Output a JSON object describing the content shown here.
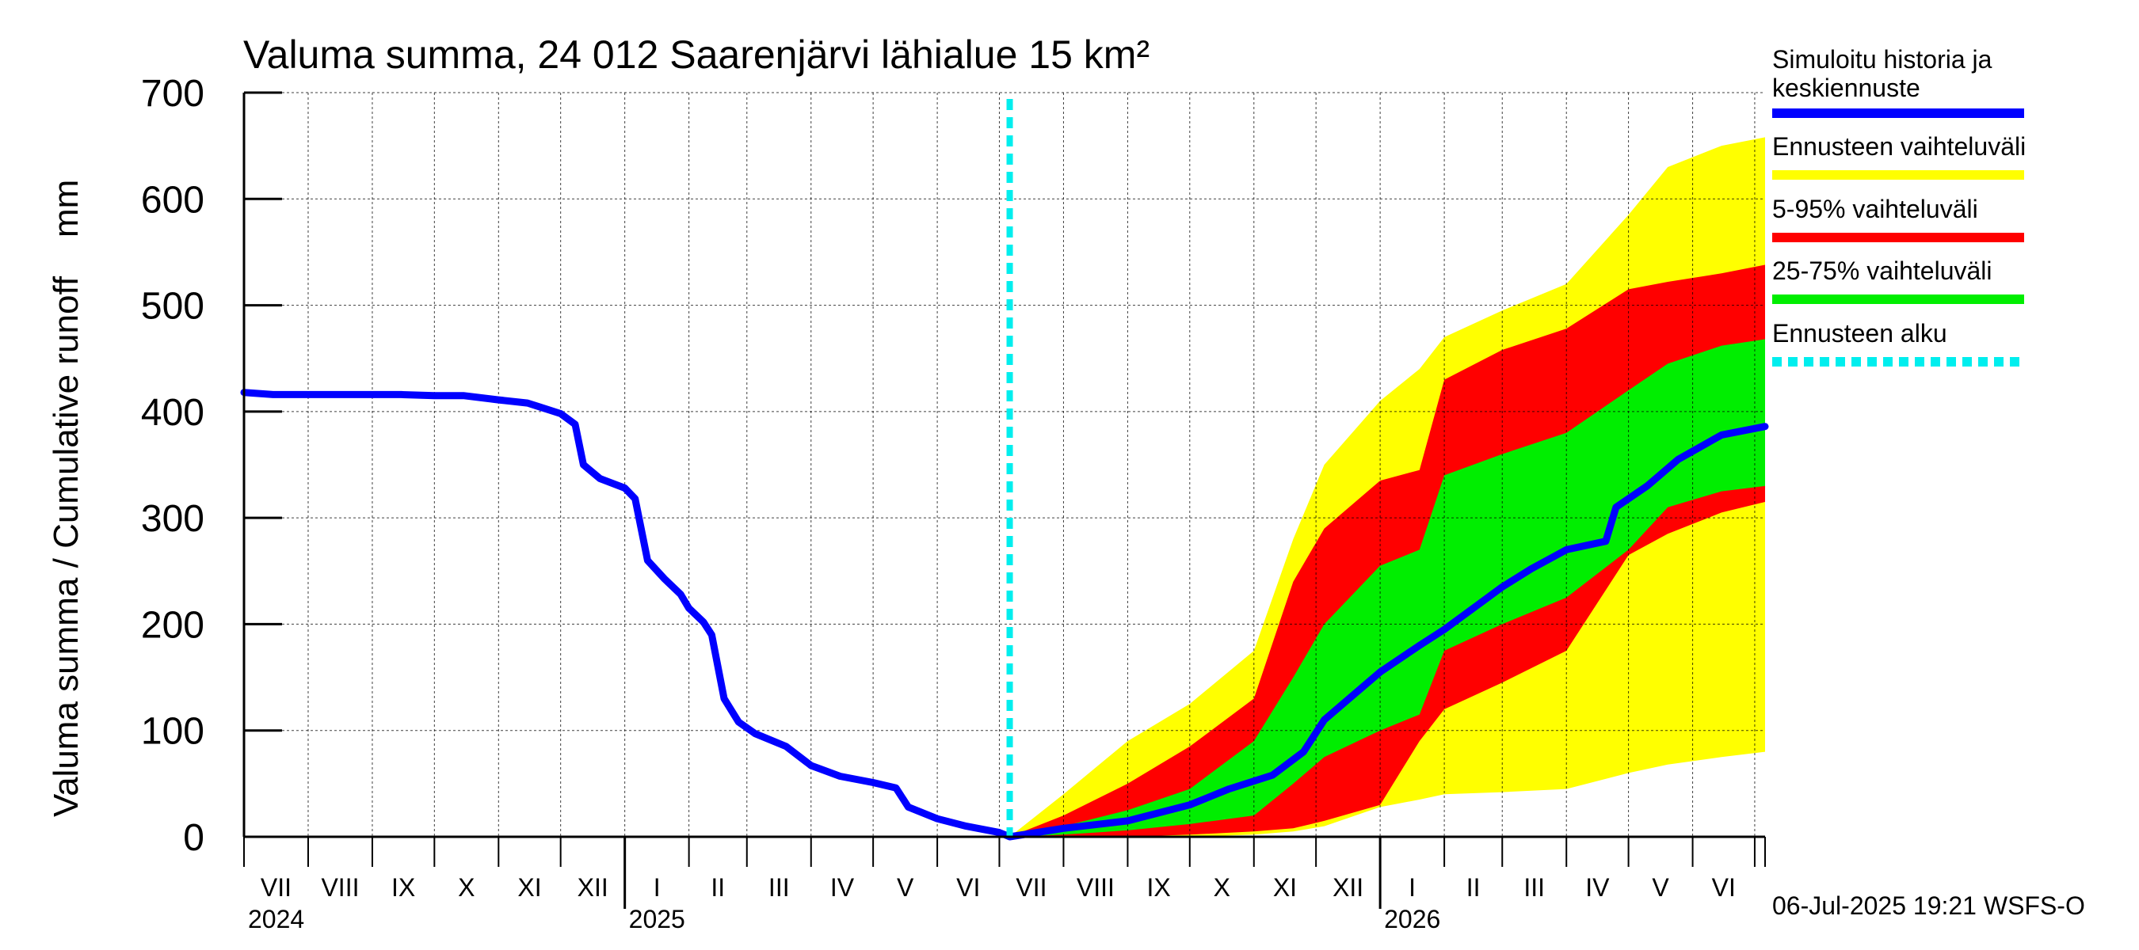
{
  "chart_data": {
    "type": "area",
    "title": "Valuma summa, 24 012 Saarenjärvi lähialue 15 km²",
    "ylabel": "Valuma summa / Cumulative runoff    mm",
    "ylim": [
      0,
      700
    ],
    "yticks": [
      "0",
      "100",
      "200",
      "300",
      "400",
      "500",
      "600",
      "700"
    ],
    "ytick_values": [
      0,
      100,
      200,
      300,
      400,
      500,
      600,
      700
    ],
    "x_start": "2024-07-01",
    "x_end": "2026-07-06",
    "month_labels": [
      "VII",
      "VIII",
      "IX",
      "X",
      "XI",
      "XII",
      "I",
      "II",
      "III",
      "IV",
      "V",
      "VI",
      "VII",
      "VIII",
      "IX",
      "X",
      "XI",
      "XII",
      "I",
      "II",
      "III",
      "IV",
      "V",
      "VI"
    ],
    "year_labels": [
      {
        "label": "2024",
        "date": "2024-07-01"
      },
      {
        "label": "2025",
        "date": "2025-01-01"
      },
      {
        "label": "2026",
        "date": "2026-01-01"
      }
    ],
    "forecast_start": "2025-07-06",
    "grid": true,
    "legend_placement": "right",
    "legend": [
      {
        "label": "Simuloitu historia ja\nkeskiennuste",
        "color": "#0000ff",
        "style": "solid"
      },
      {
        "label": "Ennusteen vaihteluväli",
        "color": "#ffff00",
        "style": "solid"
      },
      {
        "label": "5-95% vaihteluväli",
        "color": "#ff0000",
        "style": "solid"
      },
      {
        "label": "25-75% vaihteluväli",
        "color": "#00ee00",
        "style": "solid"
      },
      {
        "label": "Ennusteen alku",
        "color": "#00eeee",
        "style": "dashed"
      }
    ],
    "footer": "06-Jul-2025 19:21 WSFS-O",
    "history": {
      "name": "Simuloitu historia ja keskiennuste",
      "points": [
        [
          "2024-07-01",
          418
        ],
        [
          "2024-07-15",
          416
        ],
        [
          "2024-08-15",
          416
        ],
        [
          "2024-09-15",
          416
        ],
        [
          "2024-10-01",
          415
        ],
        [
          "2024-10-15",
          415
        ],
        [
          "2024-11-01",
          411
        ],
        [
          "2024-11-15",
          408
        ],
        [
          "2024-12-01",
          398
        ],
        [
          "2024-12-08",
          388
        ],
        [
          "2024-12-12",
          350
        ],
        [
          "2024-12-20",
          337
        ],
        [
          "2025-01-01",
          328
        ],
        [
          "2025-01-06",
          318
        ],
        [
          "2025-01-12",
          260
        ],
        [
          "2025-01-20",
          243
        ],
        [
          "2025-01-28",
          228
        ],
        [
          "2025-02-01",
          215
        ],
        [
          "2025-02-08",
          202
        ],
        [
          "2025-02-12",
          190
        ],
        [
          "2025-02-18",
          130
        ],
        [
          "2025-02-25",
          108
        ],
        [
          "2025-03-05",
          97
        ],
        [
          "2025-03-20",
          85
        ],
        [
          "2025-04-01",
          67
        ],
        [
          "2025-04-15",
          57
        ],
        [
          "2025-05-01",
          51
        ],
        [
          "2025-05-12",
          46
        ],
        [
          "2025-05-18",
          28
        ],
        [
          "2025-06-01",
          17
        ],
        [
          "2025-06-15",
          10
        ],
        [
          "2025-07-01",
          4
        ],
        [
          "2025-07-06",
          0
        ]
      ]
    },
    "forecast_median": {
      "name": "keskiennuste",
      "points": [
        [
          "2025-07-06",
          0
        ],
        [
          "2025-08-01",
          8
        ],
        [
          "2025-09-01",
          15
        ],
        [
          "2025-10-01",
          30
        ],
        [
          "2025-10-20",
          45
        ],
        [
          "2025-11-10",
          58
        ],
        [
          "2025-11-25",
          80
        ],
        [
          "2025-12-05",
          110
        ],
        [
          "2025-12-20",
          135
        ],
        [
          "2026-01-01",
          155
        ],
        [
          "2026-01-20",
          180
        ],
        [
          "2026-02-01",
          195
        ],
        [
          "2026-02-15",
          215
        ],
        [
          "2026-03-01",
          235
        ],
        [
          "2026-03-15",
          252
        ],
        [
          "2026-04-01",
          270
        ],
        [
          "2026-04-20",
          278
        ],
        [
          "2026-04-25",
          310
        ],
        [
          "2026-05-10",
          330
        ],
        [
          "2026-05-25",
          355
        ],
        [
          "2026-06-15",
          378
        ],
        [
          "2026-07-06",
          386
        ]
      ]
    },
    "bands": [
      {
        "name": "Ennusteen vaihteluväli",
        "color": "#ffff00",
        "dates": [
          "2025-07-06",
          "2025-08-01",
          "2025-09-01",
          "2025-10-01",
          "2025-11-01",
          "2025-11-20",
          "2025-12-05",
          "2026-01-01",
          "2026-01-20",
          "2026-02-01",
          "2026-03-01",
          "2026-04-01",
          "2026-05-01",
          "2026-05-20",
          "2026-06-15",
          "2026-07-06"
        ],
        "upper": [
          0,
          40,
          90,
          125,
          175,
          280,
          350,
          410,
          440,
          470,
          495,
          520,
          585,
          630,
          650,
          658
        ],
        "lower": [
          0,
          0,
          0,
          0,
          2,
          5,
          10,
          28,
          35,
          40,
          42,
          45,
          60,
          68,
          75,
          80
        ]
      },
      {
        "name": "5-95% vaihteluväli",
        "color": "#ff0000",
        "dates": [
          "2025-07-06",
          "2025-08-01",
          "2025-09-01",
          "2025-10-01",
          "2025-11-01",
          "2025-11-20",
          "2025-12-05",
          "2026-01-01",
          "2026-01-20",
          "2026-02-01",
          "2026-03-01",
          "2026-04-01",
          "2026-05-01",
          "2026-05-20",
          "2026-06-15",
          "2026-07-06"
        ],
        "upper": [
          0,
          20,
          50,
          85,
          130,
          240,
          290,
          335,
          345,
          430,
          458,
          478,
          515,
          522,
          530,
          538
        ],
        "lower": [
          0,
          0,
          0,
          2,
          5,
          8,
          15,
          30,
          90,
          120,
          145,
          175,
          265,
          285,
          305,
          315
        ]
      },
      {
        "name": "25-75% vaihteluväli",
        "color": "#00ee00",
        "dates": [
          "2025-07-06",
          "2025-08-01",
          "2025-09-01",
          "2025-10-01",
          "2025-11-01",
          "2025-11-20",
          "2025-12-05",
          "2026-01-01",
          "2026-01-20",
          "2026-02-01",
          "2026-03-01",
          "2026-04-01",
          "2026-05-01",
          "2026-05-20",
          "2026-06-15",
          "2026-07-06"
        ],
        "upper": [
          0,
          10,
          25,
          45,
          90,
          150,
          200,
          255,
          270,
          340,
          360,
          380,
          420,
          445,
          462,
          468
        ],
        "lower": [
          0,
          2,
          6,
          12,
          20,
          50,
          75,
          100,
          115,
          175,
          200,
          225,
          270,
          310,
          325,
          330
        ]
      }
    ]
  }
}
